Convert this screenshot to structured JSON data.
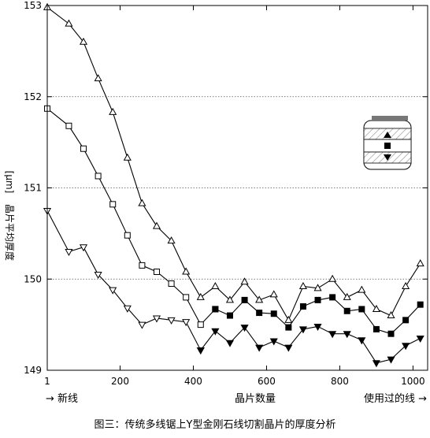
{
  "caption": "图三：传统多线锯上Y型金刚石线切割晶片的厚度分析",
  "chart_data": {
    "type": "line",
    "ylabel_text": "晶片平均厚度",
    "ylabel_unit": "[μm]",
    "xlabel": "晶片数量",
    "x_left_note": "→ 新线",
    "x_right_note": "使用过的线 →",
    "xlim": [
      1,
      1040
    ],
    "ylim": [
      149,
      153
    ],
    "xticks": [
      1,
      200,
      400,
      600,
      800,
      1000
    ],
    "yticks": [
      149,
      150,
      151,
      152,
      153
    ],
    "ygrid": [
      150,
      151,
      152
    ],
    "legend_position": "right",
    "series": [
      {
        "marker": "triangle-up-open",
        "x": [
          1,
          60,
          100,
          140,
          180,
          220,
          260,
          300,
          340,
          380,
          420,
          460,
          500,
          540,
          580,
          620,
          660,
          700,
          740,
          780,
          820,
          860,
          900,
          940,
          980,
          1020
        ],
        "y": [
          152.98,
          152.8,
          152.6,
          152.2,
          151.83,
          151.33,
          150.83,
          150.58,
          150.42,
          150.08,
          149.8,
          149.92,
          149.77,
          149.97,
          149.77,
          149.83,
          149.55,
          149.92,
          149.9,
          150.0,
          149.8,
          149.88,
          149.67,
          149.6,
          149.92,
          150.17
        ]
      },
      {
        "marker": "square-open",
        "x": [
          1,
          60,
          100,
          140,
          180,
          220,
          260,
          300,
          340,
          380,
          420,
          460
        ],
        "y": [
          151.87,
          151.68,
          151.43,
          151.13,
          150.82,
          150.48,
          150.15,
          150.08,
          149.95,
          149.8,
          149.5,
          149.67
        ]
      },
      {
        "marker": "square-filled",
        "x": [
          460,
          500,
          540,
          580,
          620,
          660,
          700,
          740,
          780,
          820,
          860,
          900,
          940,
          980,
          1020
        ],
        "y": [
          149.67,
          149.6,
          149.77,
          149.63,
          149.62,
          149.47,
          149.7,
          149.77,
          149.8,
          149.65,
          149.67,
          149.45,
          149.4,
          149.55,
          149.72
        ]
      },
      {
        "marker": "triangle-down-open",
        "x": [
          1,
          60,
          100,
          140,
          180,
          220,
          260,
          300,
          340,
          380,
          420
        ],
        "y": [
          150.75,
          150.3,
          150.35,
          150.05,
          149.88,
          149.68,
          149.5,
          149.57,
          149.55,
          149.53,
          149.22
        ]
      },
      {
        "marker": "triangle-down-filled",
        "x": [
          420,
          460,
          500,
          540,
          580,
          620,
          660,
          700,
          740,
          780,
          820,
          860,
          900,
          940,
          980,
          1020
        ],
        "y": [
          149.22,
          149.43,
          149.3,
          149.47,
          149.25,
          149.32,
          149.25,
          149.45,
          149.48,
          149.4,
          149.4,
          149.33,
          149.08,
          149.12,
          149.27,
          149.35
        ]
      }
    ]
  },
  "inset": {
    "name": "wire-cross-section-icon",
    "top_color": "#777777",
    "band_color": "#dddddd"
  }
}
